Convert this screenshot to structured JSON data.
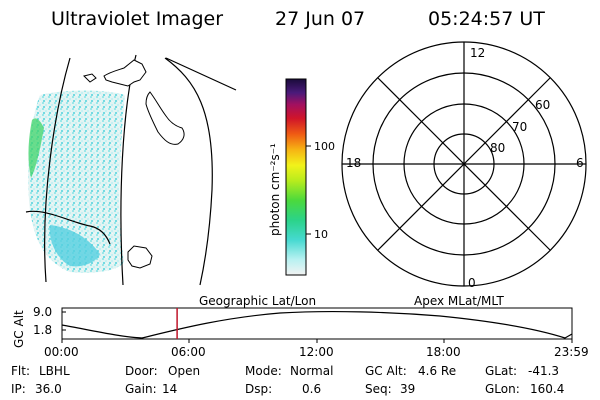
{
  "header": {
    "instrument": "Ultraviolet Imager",
    "date": "27 Jun 07",
    "time": "05:24:57 UT"
  },
  "colorbar": {
    "unit_label": "photon cm⁻²s⁻¹",
    "ticks": [
      "100",
      "10"
    ]
  },
  "polar": {
    "mlt_labels": {
      "top": "12",
      "left": "18",
      "right": "6",
      "bottom": "0"
    },
    "lat_labels": [
      "60",
      "70",
      "80"
    ]
  },
  "timeline": {
    "ylabel": "GC Alt",
    "yticks": [
      "9.0",
      "1.8"
    ],
    "left_title": "Geographic Lat/Lon",
    "right_title": "Apex MLat/MLT",
    "xticks": [
      "00:00",
      "06:00",
      "12:00",
      "18:00",
      "23:59"
    ],
    "current_time_fraction": 0.2257
  },
  "status": {
    "row1": [
      {
        "label": "Flt:",
        "value": "LBHL"
      },
      {
        "label": "Door:",
        "value": "Open"
      },
      {
        "label": "Mode:",
        "value": "Normal"
      },
      {
        "label": "GC Alt:",
        "value": "4.6 Re"
      },
      {
        "label": "GLat:",
        "value": "-41.3"
      }
    ],
    "row2": [
      {
        "label": "IP:",
        "value": "36.0"
      },
      {
        "label": "Gain:",
        "value": "14"
      },
      {
        "label": "Dsp:",
        "value": "0.6"
      },
      {
        "label": "Seq:",
        "value": "39"
      },
      {
        "label": "GLon:",
        "value": "160.4"
      }
    ]
  },
  "colors": {
    "aurora_cyan": "#7fe3e8",
    "aurora_green": "#3fd46a",
    "marker_red": "#c0142a"
  }
}
